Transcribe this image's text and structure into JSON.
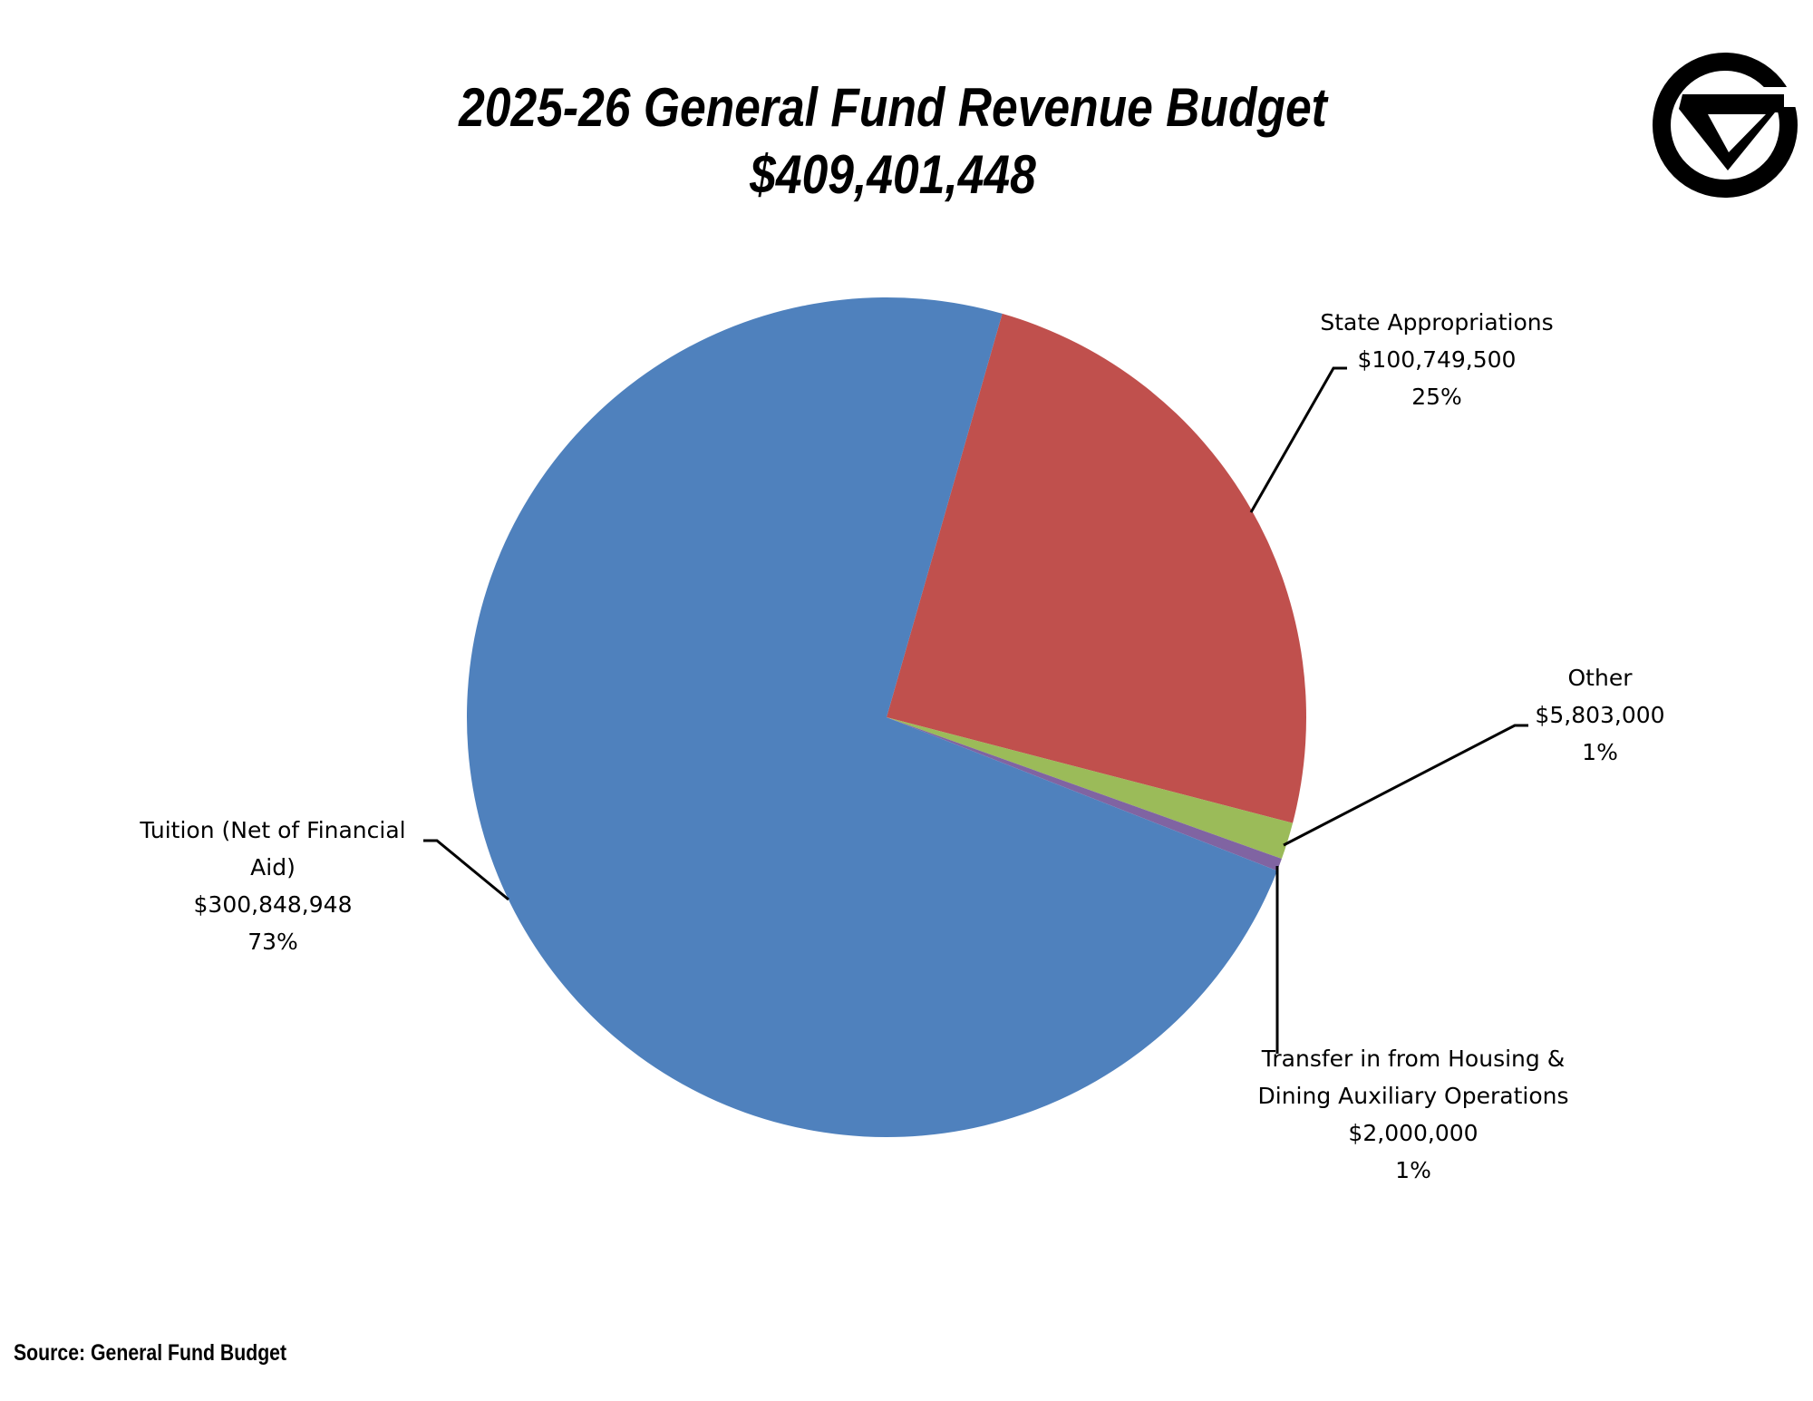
{
  "title": "2025-26 General Fund Revenue Budget",
  "subtitle": "$409,401,448",
  "source": "Source: General Fund Budget",
  "logo": {
    "name": "gv-logo",
    "text": "GV"
  },
  "chart_data": {
    "type": "pie",
    "title": "2025-26 General Fund Revenue Budget",
    "subtitle": "$409,401,448",
    "total": 409401448,
    "start_angle_deg": 16,
    "direction": "clockwise",
    "slices": [
      {
        "name": "State Appropriations",
        "value": 100749500,
        "value_label": "$100,749,500",
        "percent_label": "25%",
        "color": "#C0504D"
      },
      {
        "name": "Other",
        "value": 5803000,
        "value_label": "$5,803,000",
        "percent_label": "1%",
        "color": "#9BBB59"
      },
      {
        "name": "Transfer in from Housing & Dining Auxiliary Operations",
        "value": 2000000,
        "value_label": "$2,000,000",
        "percent_label": "1%",
        "color": "#8064A2"
      },
      {
        "name": "Tuition (Net of Financial Aid)",
        "value": 300848948,
        "value_label": "$300,848,948",
        "percent_label": "73%",
        "color": "#4F81BD"
      }
    ],
    "label_lines": {
      "state": [
        "State Appropriations"
      ],
      "other": [
        "Other"
      ],
      "transfer": [
        "Transfer in from Housing &",
        "Dining Auxiliary Operations"
      ],
      "tuition": [
        "Tuition (Net of Financial",
        "Aid)"
      ]
    }
  }
}
